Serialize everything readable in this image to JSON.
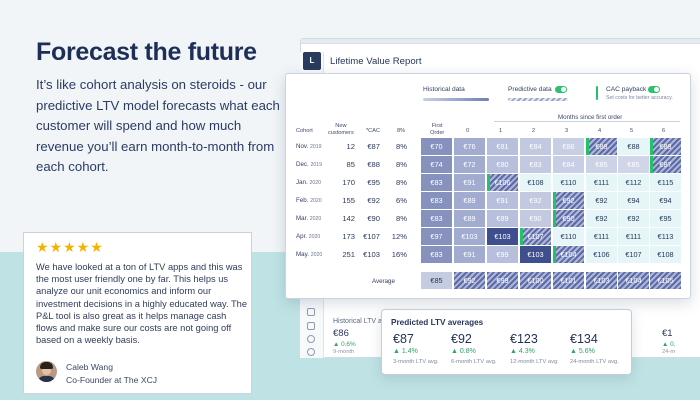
{
  "hero": {
    "headline": "Forecast the future",
    "intro": "It’s like cohort analysis on steroids - our predictive LTV model forecasts what each customer will spend and how much revenue you’ll earn month-to-month from each cohort."
  },
  "testimonial": {
    "rating": 5,
    "stars": "★★★★★",
    "quote": "We have looked at a ton of LTV apps and this was the most user friendly one by far. This helps us analyze our unit economics and inform our investment decisions in a highly educated way. The P&L tool is also great as it helps manage cash flows and make sure our costs are not going off based on a weekly basis.",
    "author_name": "Caleb Wang",
    "author_role": "Co-Founder at The XCJ"
  },
  "app": {
    "logo": "L",
    "title": "Lifetime Value Report",
    "back_summary": {
      "label": "Historical LTV aver",
      "left_value": "€86",
      "left_pct": "▲ 0.6%",
      "left_sub": "9-month",
      "right_value": "€1",
      "right_pct": "▲ 0.",
      "right_sub": "24-m"
    },
    "controls": {
      "historical": "Historical data",
      "predictive": "Predictive data",
      "predictive_on": true,
      "cac": "CAC payback",
      "cac_on": true,
      "cac_sub": "Set costs for better accuracy.",
      "accent": "#2cc16f"
    },
    "table": {
      "months_since_label": "Months since first order",
      "headers": {
        "cohort": "Cohort",
        "new_customers": [
          "New",
          "customers"
        ],
        "cac": "*CAC",
        "pct": "8%",
        "first_order": [
          "First",
          "Order"
        ],
        "months": [
          "0",
          "1",
          "2",
          "3",
          "4",
          "5",
          "6"
        ]
      },
      "rows": [
        {
          "month": "Nov.",
          "year": "2019",
          "new": "12",
          "cac": "€87",
          "pct": "8%",
          "cells": [
            "€70",
            "€76",
            "€81",
            "€84",
            "€86",
            "€88",
            "€88",
            "€88"
          ],
          "hl": [
            5,
            7
          ]
        },
        {
          "month": "Dec.",
          "year": "2019",
          "new": "85",
          "cac": "€88",
          "pct": "8%",
          "cells": [
            "€74",
            "€72",
            "€80",
            "€83",
            "€84",
            "€85",
            "€85",
            "€87"
          ],
          "hl": [
            7
          ]
        },
        {
          "month": "Jan.",
          "year": "2020",
          "new": "170",
          "cac": "€95",
          "pct": "8%",
          "cells": [
            "€83",
            "€91",
            "€106",
            "€108",
            "€110",
            "€111",
            "€112",
            "€115"
          ],
          "hl": [
            2
          ]
        },
        {
          "month": "Feb.",
          "year": "2020",
          "new": "155",
          "cac": "€92",
          "pct": "6%",
          "cells": [
            "€83",
            "€89",
            "€91",
            "€92",
            "€92",
            "€92",
            "€94",
            "€94"
          ],
          "hl": [
            4
          ]
        },
        {
          "month": "Mar.",
          "year": "2020",
          "new": "142",
          "cac": "€90",
          "pct": "8%",
          "cells": [
            "€83",
            "€89",
            "€89",
            "€90",
            "€90",
            "€92",
            "€92",
            "€95"
          ],
          "hl": [
            4
          ]
        },
        {
          "month": "Apr.",
          "year": "2020",
          "new": "173",
          "cac": "€107",
          "pct": "12%",
          "cells": [
            "€97",
            "€103",
            "€103",
            "€107",
            "€110",
            "€111",
            "€111",
            "€113"
          ],
          "hl": [
            3
          ]
        },
        {
          "month": "May.",
          "year": "2020",
          "new": "251",
          "cac": "€103",
          "pct": "16%",
          "cells": [
            "€83",
            "€91",
            "€99",
            "€103",
            "€104",
            "€106",
            "€107",
            "€108"
          ],
          "hl": [
            4
          ]
        }
      ],
      "average": {
        "label": "Average",
        "cells": [
          "€85",
          "€92",
          "€99",
          "€100",
          "€101",
          "€103",
          "€104",
          "€105"
        ]
      }
    },
    "predicted": {
      "title": "Predicted LTV averages",
      "items": [
        {
          "value": "€87",
          "pct": "▲ 1.4%",
          "sub": "3-month LTV avg."
        },
        {
          "value": "€92",
          "pct": "▲ 0.8%",
          "sub": "6-month LTV avg."
        },
        {
          "value": "€123",
          "pct": "▲ 4.3%",
          "sub": "12-month LTV avg."
        },
        {
          "value": "€134",
          "pct": "▲ 5.6%",
          "sub": "24-month LTV avg."
        }
      ]
    }
  }
}
